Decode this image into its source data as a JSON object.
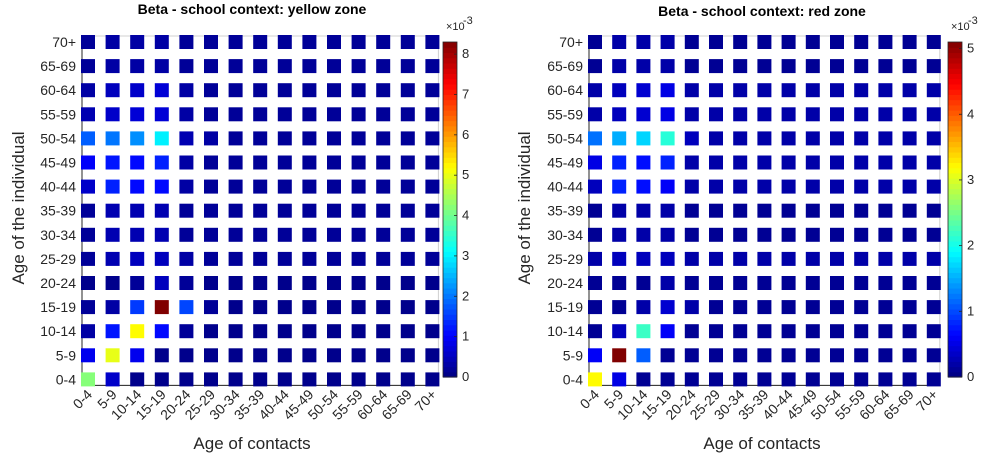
{
  "chart_data": [
    {
      "type": "heatmap",
      "title": "Beta - school context: yellow zone",
      "xlabel": "Age of contacts",
      "ylabel": "Age of the individual",
      "categories": [
        "0-4",
        "5-9",
        "10-14",
        "15-19",
        "20-24",
        "25-29",
        "30-34",
        "35-39",
        "40-44",
        "45-49",
        "50-54",
        "55-59",
        "60-64",
        "65-69",
        "70+"
      ],
      "colorbar": {
        "min": 0,
        "max": 8.3,
        "ticks": [
          0,
          1,
          2,
          3,
          4,
          5,
          6,
          7,
          8
        ],
        "multiplier": "×10",
        "exponent": "-3"
      },
      "values": [
        [
          4.2,
          0.6,
          0.1,
          0.1,
          0.1,
          0.1,
          0.1,
          0.1,
          0.1,
          0.1,
          0.1,
          0.1,
          0.1,
          0.1,
          0.1
        ],
        [
          0.9,
          5.0,
          0.9,
          0.1,
          0.1,
          0.1,
          0.1,
          0.1,
          0.1,
          0.1,
          0.1,
          0.1,
          0.1,
          0.1,
          0.1
        ],
        [
          0.3,
          1.2,
          5.2,
          1.1,
          0.2,
          0.1,
          0.1,
          0.1,
          0.1,
          0.1,
          0.1,
          0.1,
          0.1,
          0.1,
          0.1
        ],
        [
          0.2,
          0.3,
          1.5,
          8.3,
          1.6,
          0.2,
          0.1,
          0.1,
          0.1,
          0.1,
          0.1,
          0.1,
          0.1,
          0.1,
          0.1
        ],
        [
          0.1,
          0.1,
          0.2,
          0.5,
          0.2,
          0.1,
          0.1,
          0.1,
          0.1,
          0.1,
          0.1,
          0.1,
          0.1,
          0.1,
          0.1
        ],
        [
          0.2,
          0.4,
          0.5,
          0.5,
          0.3,
          0.2,
          0.2,
          0.2,
          0.2,
          0.2,
          0.2,
          0.2,
          0.2,
          0.2,
          0.2
        ],
        [
          0.2,
          0.4,
          0.4,
          0.4,
          0.2,
          0.2,
          0.2,
          0.2,
          0.2,
          0.2,
          0.2,
          0.2,
          0.2,
          0.2,
          0.2
        ],
        [
          0.2,
          0.4,
          0.4,
          0.4,
          0.2,
          0.2,
          0.2,
          0.2,
          0.2,
          0.2,
          0.2,
          0.2,
          0.2,
          0.2,
          0.2
        ],
        [
          0.6,
          1.3,
          1.1,
          1.1,
          0.3,
          0.2,
          0.2,
          0.2,
          0.2,
          0.2,
          0.2,
          0.2,
          0.2,
          0.2,
          0.2
        ],
        [
          1.0,
          1.2,
          1.1,
          1.3,
          0.3,
          0.2,
          0.2,
          0.2,
          0.2,
          0.2,
          0.2,
          0.2,
          0.2,
          0.2,
          0.2
        ],
        [
          1.8,
          2.0,
          2.2,
          3.0,
          0.4,
          0.3,
          0.2,
          0.2,
          0.2,
          0.2,
          0.2,
          0.2,
          0.2,
          0.2,
          0.2
        ],
        [
          0.4,
          0.6,
          0.7,
          0.7,
          0.3,
          0.2,
          0.2,
          0.2,
          0.2,
          0.2,
          0.2,
          0.2,
          0.2,
          0.2,
          0.2
        ],
        [
          0.3,
          0.5,
          0.6,
          0.7,
          0.3,
          0.2,
          0.2,
          0.2,
          0.2,
          0.2,
          0.2,
          0.2,
          0.2,
          0.2,
          0.2
        ],
        [
          0.2,
          0.3,
          0.3,
          0.3,
          0.2,
          0.2,
          0.2,
          0.2,
          0.2,
          0.2,
          0.2,
          0.2,
          0.2,
          0.2,
          0.2
        ],
        [
          0.2,
          0.3,
          0.3,
          0.3,
          0.2,
          0.2,
          0.2,
          0.2,
          0.2,
          0.2,
          0.2,
          0.2,
          0.2,
          0.2,
          0.2
        ]
      ]
    },
    {
      "type": "heatmap",
      "title": "Beta - school context: red zone",
      "xlabel": "Age of contacts",
      "ylabel": "Age of the individual",
      "categories": [
        "0-4",
        "5-9",
        "10-14",
        "15-19",
        "20-24",
        "25-29",
        "30-34",
        "35-39",
        "40-44",
        "45-49",
        "50-54",
        "55-59",
        "60-64",
        "65-69",
        "70+"
      ],
      "colorbar": {
        "min": 0,
        "max": 5.1,
        "ticks": [
          0,
          1,
          2,
          3,
          4,
          5
        ],
        "multiplier": "×10",
        "exponent": "-3"
      },
      "values": [
        [
          3.2,
          0.5,
          0.1,
          0.1,
          0.1,
          0.1,
          0.1,
          0.1,
          0.1,
          0.1,
          0.1,
          0.1,
          0.1,
          0.1,
          0.1
        ],
        [
          0.6,
          5.1,
          1.1,
          0.1,
          0.1,
          0.1,
          0.1,
          0.1,
          0.1,
          0.1,
          0.1,
          0.1,
          0.1,
          0.1,
          0.1
        ],
        [
          0.1,
          0.3,
          2.2,
          0.6,
          0.1,
          0.1,
          0.1,
          0.1,
          0.1,
          0.1,
          0.1,
          0.1,
          0.1,
          0.1,
          0.1
        ],
        [
          0.1,
          0.1,
          0.2,
          0.4,
          0.2,
          0.1,
          0.1,
          0.1,
          0.1,
          0.1,
          0.1,
          0.1,
          0.1,
          0.1,
          0.1
        ],
        [
          0.1,
          0.1,
          0.1,
          0.2,
          0.1,
          0.1,
          0.1,
          0.1,
          0.1,
          0.1,
          0.1,
          0.1,
          0.1,
          0.1,
          0.1
        ],
        [
          0.2,
          0.3,
          0.3,
          0.3,
          0.2,
          0.2,
          0.2,
          0.2,
          0.2,
          0.2,
          0.2,
          0.2,
          0.2,
          0.2,
          0.2
        ],
        [
          0.1,
          0.2,
          0.2,
          0.2,
          0.1,
          0.1,
          0.1,
          0.1,
          0.1,
          0.1,
          0.1,
          0.1,
          0.1,
          0.1,
          0.1
        ],
        [
          0.1,
          0.2,
          0.2,
          0.2,
          0.1,
          0.1,
          0.1,
          0.1,
          0.1,
          0.1,
          0.1,
          0.1,
          0.1,
          0.1,
          0.1
        ],
        [
          0.3,
          0.8,
          0.7,
          0.6,
          0.2,
          0.2,
          0.2,
          0.2,
          0.2,
          0.2,
          0.2,
          0.2,
          0.2,
          0.2,
          0.2
        ],
        [
          0.5,
          0.8,
          0.7,
          0.8,
          0.2,
          0.2,
          0.2,
          0.2,
          0.2,
          0.2,
          0.2,
          0.2,
          0.2,
          0.2,
          0.2
        ],
        [
          1.2,
          1.5,
          1.7,
          2.1,
          0.3,
          0.2,
          0.2,
          0.2,
          0.2,
          0.2,
          0.2,
          0.2,
          0.2,
          0.2,
          0.2
        ],
        [
          0.2,
          0.3,
          0.4,
          0.5,
          0.2,
          0.2,
          0.2,
          0.2,
          0.2,
          0.2,
          0.2,
          0.2,
          0.2,
          0.2,
          0.2
        ],
        [
          0.2,
          0.3,
          0.4,
          0.5,
          0.2,
          0.2,
          0.2,
          0.2,
          0.2,
          0.2,
          0.2,
          0.2,
          0.2,
          0.2,
          0.2
        ],
        [
          0.1,
          0.2,
          0.2,
          0.2,
          0.1,
          0.1,
          0.1,
          0.1,
          0.1,
          0.1,
          0.1,
          0.1,
          0.1,
          0.1,
          0.1
        ],
        [
          0.1,
          0.2,
          0.2,
          0.2,
          0.1,
          0.1,
          0.1,
          0.1,
          0.1,
          0.1,
          0.1,
          0.1,
          0.1,
          0.1,
          0.1
        ]
      ]
    }
  ]
}
